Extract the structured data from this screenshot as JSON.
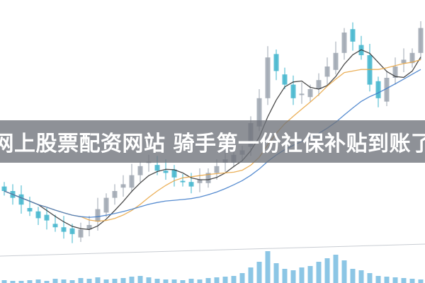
{
  "banner": {
    "title": "网上股票配资网站 骑手第一份社保补贴到账了"
  },
  "chart_data": {
    "type": "candlestick",
    "title": "",
    "xlabel": "",
    "ylabel": "",
    "grid": false,
    "close": [
      25,
      22,
      19,
      16,
      13,
      12,
      9,
      7,
      6,
      8,
      10,
      17,
      22,
      25,
      28,
      32,
      36,
      38,
      34,
      33,
      31,
      29,
      27,
      30,
      33,
      36,
      39,
      41,
      43,
      55,
      66,
      84,
      78,
      72,
      66,
      68,
      70,
      74,
      80,
      86,
      95,
      91,
      85,
      72,
      66,
      75,
      80,
      83,
      86,
      97
    ],
    "volume": [
      4,
      3,
      3,
      4,
      5,
      3,
      6,
      5,
      4,
      7,
      6,
      8,
      5,
      6,
      7,
      9,
      10,
      8,
      6,
      5,
      5,
      4,
      6,
      5,
      7,
      8,
      9,
      10,
      14,
      22,
      30,
      45,
      28,
      20,
      18,
      22,
      24,
      30,
      35,
      40,
      32,
      20,
      18,
      14,
      10,
      9,
      8,
      7,
      6,
      5
    ],
    "moving_averages": [
      {
        "period": 5,
        "color": "#2b2b2b"
      },
      {
        "period": 10,
        "color": "#e8a23c"
      },
      {
        "period": 20,
        "color": "#3a78c8"
      }
    ],
    "colors": {
      "up": "#9ea6b0",
      "down": "#3fb4cc",
      "volume": "#6fb8de"
    }
  }
}
